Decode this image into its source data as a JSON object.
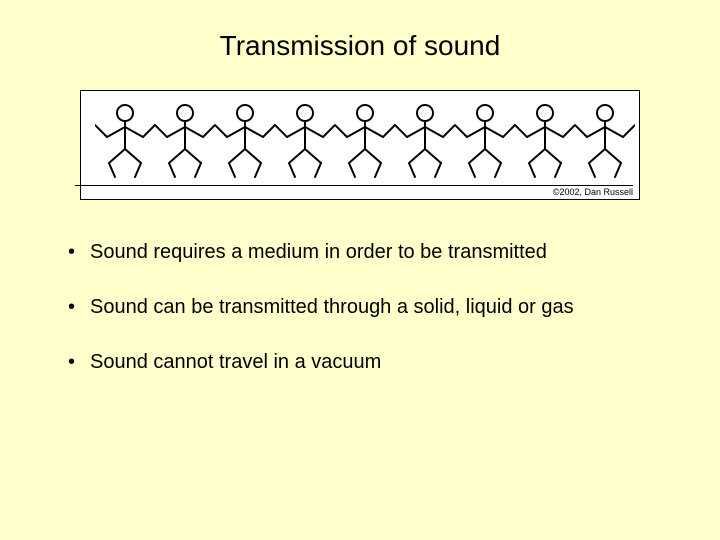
{
  "background_color": "#ffffcc",
  "title": {
    "text": "Transmission of sound",
    "fontsize": 28,
    "color": "#000000"
  },
  "figure": {
    "type": "infographic",
    "description": "row of stick figures holding hands",
    "count": 9,
    "background_color": "#ffffff",
    "border_color": "#000000",
    "stroke_color": "#000000",
    "stroke_width": 2,
    "copyright": "©2002, Dan Russell"
  },
  "bullets": {
    "items": [
      "Sound requires a medium in order to be transmitted",
      "Sound can be transmitted through a solid, liquid or gas",
      "Sound cannot travel in a vacuum"
    ],
    "fontsize": 20,
    "color": "#000000"
  }
}
